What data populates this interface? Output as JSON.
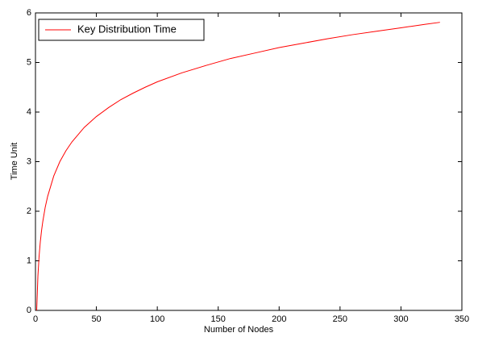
{
  "chart_data": {
    "type": "line",
    "xlabel": "Number of Nodes",
    "ylabel": "Time Unit",
    "x": [
      1,
      2,
      3,
      4,
      5,
      6,
      8,
      10,
      15,
      20,
      25,
      30,
      40,
      50,
      60,
      70,
      80,
      90,
      100,
      120,
      140,
      160,
      180,
      200,
      220,
      240,
      260,
      280,
      300,
      320,
      332
    ],
    "series": [
      {
        "name": "Key Distribution Time",
        "color": "#ff0000",
        "values": [
          0,
          0.69,
          1.1,
          1.39,
          1.61,
          1.79,
          2.08,
          2.3,
          2.71,
          3.0,
          3.22,
          3.4,
          3.69,
          3.91,
          4.09,
          4.25,
          4.38,
          4.5,
          4.61,
          4.79,
          4.94,
          5.08,
          5.19,
          5.3,
          5.39,
          5.48,
          5.56,
          5.63,
          5.7,
          5.77,
          5.81
        ]
      }
    ],
    "xlim": [
      0,
      350
    ],
    "xticks": [
      0,
      50,
      100,
      150,
      200,
      250,
      300,
      350
    ],
    "ylim": [
      0,
      6
    ],
    "yticks": [
      0,
      1,
      2,
      3,
      4,
      5,
      6
    ],
    "legend": "northwest",
    "grid": false
  }
}
